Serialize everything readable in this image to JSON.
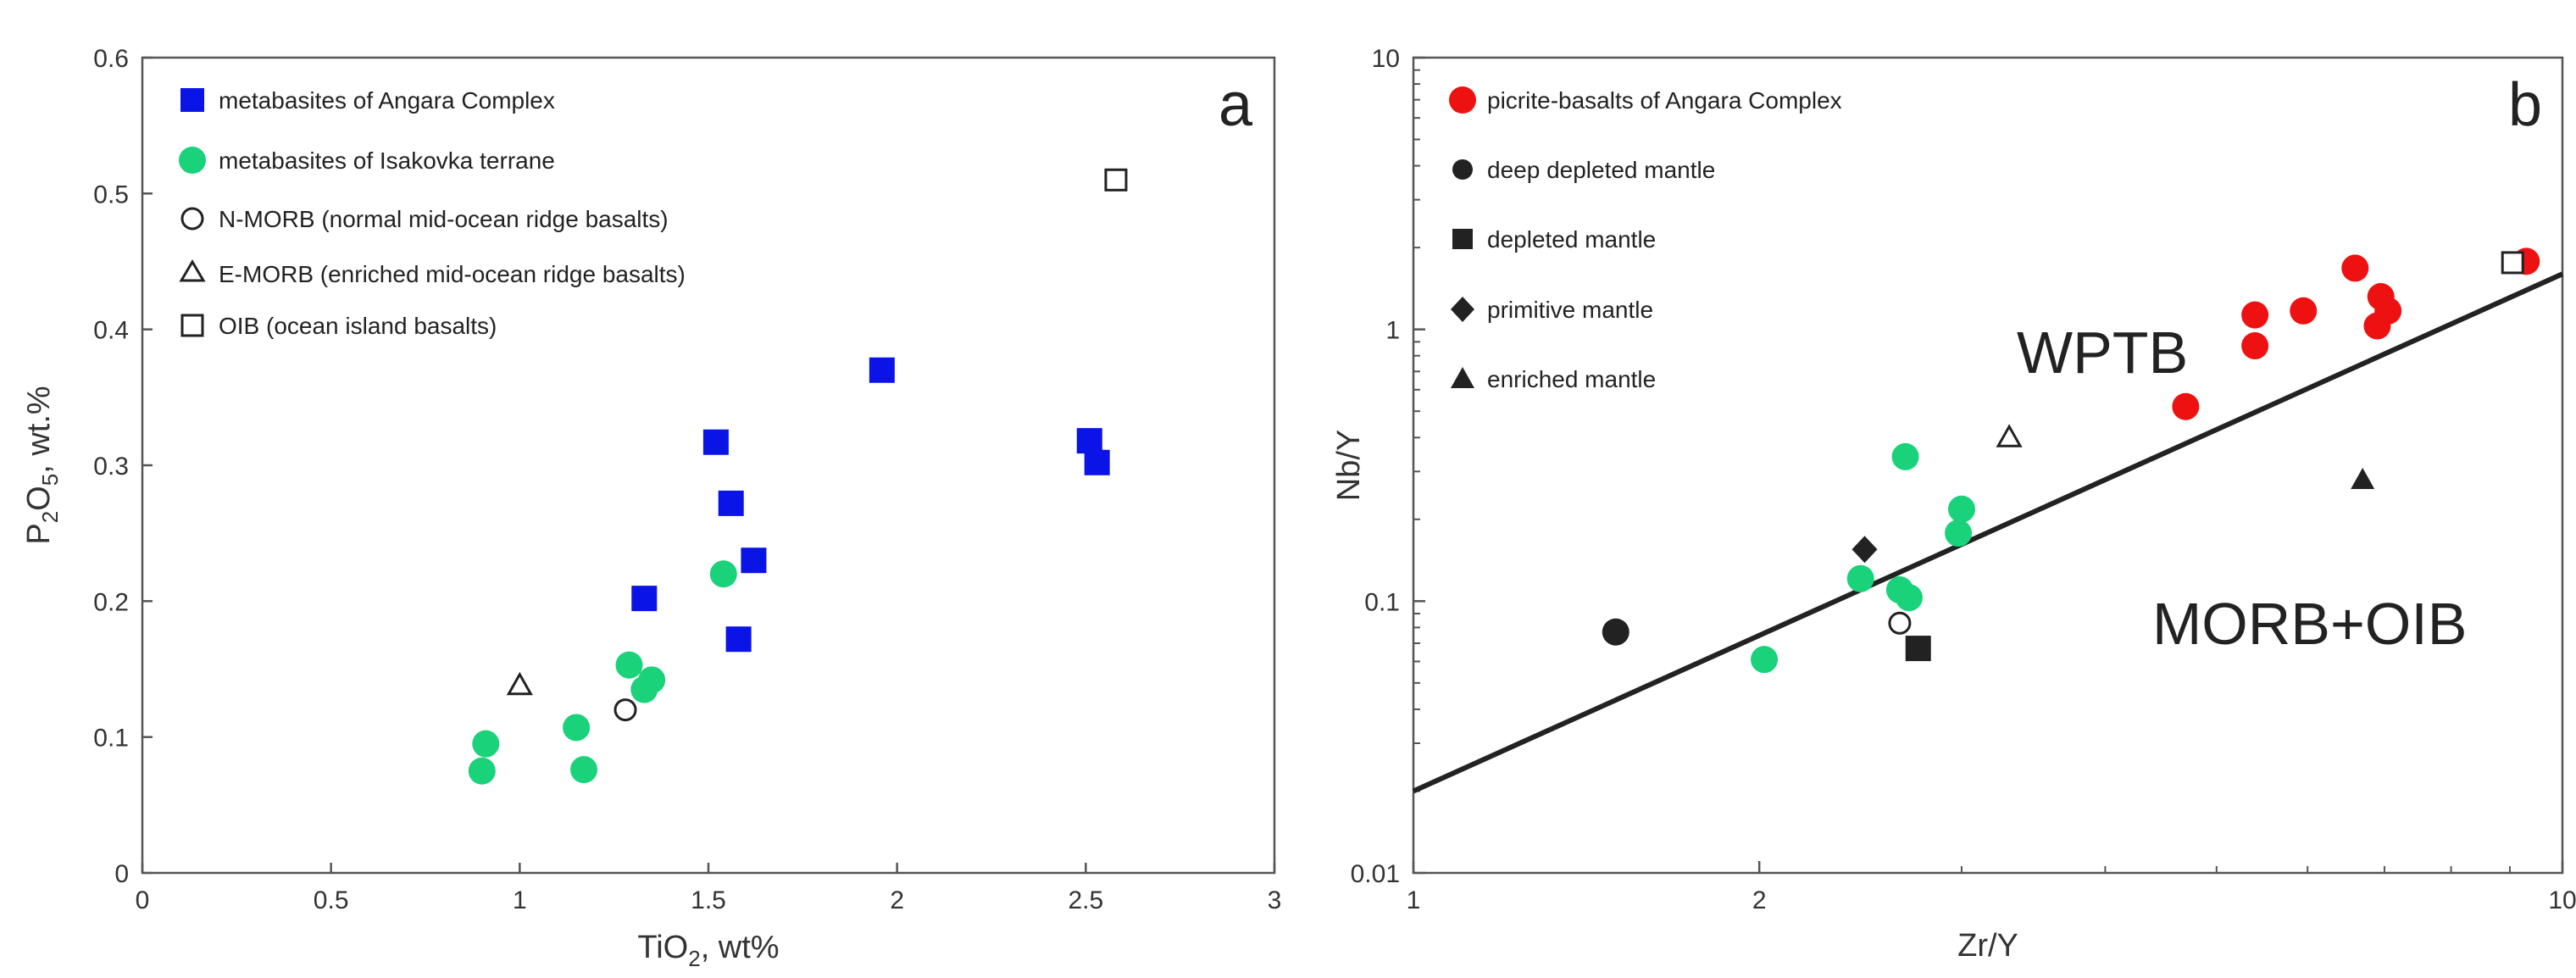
{
  "colors": {
    "angara_blue": "#0a14e6",
    "isakovka_green": "#19d27a",
    "picrite_red": "#ee1111",
    "black": "#222222",
    "axis": "#555555"
  },
  "chart_data": [
    {
      "type": "scatter",
      "panel_label": "a",
      "xlabel": {
        "main": "TiO",
        "sub": "2",
        "rest": ", wt%"
      },
      "ylabel": {
        "main": "P",
        "sub": "2",
        "mid": "O",
        "sub2": "5",
        "rest": ", wt.%"
      },
      "xlim": [
        0,
        3
      ],
      "ylim": [
        0,
        0.6
      ],
      "x_ticks": [
        0,
        0.5,
        1,
        1.5,
        2,
        2.5,
        3
      ],
      "x_tick_labels": [
        "0",
        "0.5",
        "1",
        "1.5",
        "2",
        "2.5",
        "3"
      ],
      "y_ticks": [
        0,
        0.1,
        0.2,
        0.3,
        0.4,
        0.5,
        0.6
      ],
      "y_tick_labels": [
        "0",
        "0.1",
        "0.2",
        "0.3",
        "0.4",
        "0.5",
        "0.6"
      ],
      "legend": [
        {
          "label": "metabasites of Angara Complex",
          "marker": "square-filled",
          "color": "#0a14e6"
        },
        {
          "label": "metabasites of Isakovka terrane",
          "marker": "circle-filled",
          "color": "#19d27a"
        },
        {
          "label": "N-MORB (normal mid-ocean ridge basalts)",
          "marker": "circle-open",
          "color": "#222222"
        },
        {
          "label": "E-MORB (enriched mid-ocean ridge basalts)",
          "marker": "triangle-open",
          "color": "#222222"
        },
        {
          "label": "OIB (ocean island basalts)",
          "marker": "square-open",
          "color": "#222222"
        }
      ],
      "series": [
        {
          "name": "metabasites of Angara Complex",
          "marker": "square-filled",
          "color": "#0a14e6",
          "points": [
            [
              1.96,
              0.37
            ],
            [
              1.52,
              0.317
            ],
            [
              1.56,
              0.272
            ],
            [
              1.62,
              0.23
            ],
            [
              1.33,
              0.202
            ],
            [
              1.58,
              0.172
            ],
            [
              2.51,
              0.318
            ],
            [
              2.53,
              0.302
            ]
          ]
        },
        {
          "name": "metabasites of Isakovka terrane",
          "marker": "circle-filled",
          "color": "#19d27a",
          "points": [
            [
              1.54,
              0.22
            ],
            [
              1.29,
              0.153
            ],
            [
              1.35,
              0.142
            ],
            [
              1.33,
              0.135
            ],
            [
              1.15,
              0.107
            ],
            [
              1.17,
              0.076
            ],
            [
              0.91,
              0.095
            ],
            [
              0.9,
              0.075
            ]
          ]
        },
        {
          "name": "N-MORB",
          "marker": "circle-open",
          "color": "#222222",
          "points": [
            [
              1.28,
              0.12
            ]
          ]
        },
        {
          "name": "E-MORB",
          "marker": "triangle-open",
          "color": "#222222",
          "points": [
            [
              1.0,
              0.138
            ]
          ]
        },
        {
          "name": "OIB",
          "marker": "square-open",
          "color": "#222222",
          "points": [
            [
              2.58,
              0.51
            ]
          ]
        }
      ]
    },
    {
      "type": "scatter",
      "panel_label": "b",
      "xscale": "log",
      "yscale": "log",
      "xlabel": "Zr/Y",
      "ylabel": "Nb/Y",
      "xlim": [
        1,
        10
      ],
      "ylim": [
        0.01,
        10
      ],
      "x_ticks": [
        1,
        2,
        10
      ],
      "x_tick_labels": [
        "1",
        "2",
        "10"
      ],
      "x_minor_ticks": [
        3,
        4,
        5,
        6,
        7,
        8,
        9
      ],
      "y_ticks": [
        0.01,
        0.1,
        1,
        10
      ],
      "y_tick_labels": [
        "0.01",
        "0.1",
        "1",
        "10"
      ],
      "y_minor_ticks": [
        0.02,
        0.03,
        0.04,
        0.05,
        0.06,
        0.07,
        0.08,
        0.09,
        0.2,
        0.3,
        0.4,
        0.5,
        0.6,
        0.7,
        0.8,
        0.9,
        2,
        3,
        4,
        5,
        6,
        7,
        8,
        9
      ],
      "regions": [
        "WPTB",
        "MORB+OIB"
      ],
      "region_positions": [
        "upper-middle",
        "lower-right"
      ],
      "divider_line": {
        "x": [
          1,
          10
        ],
        "y": [
          0.02,
          1.6
        ]
      },
      "legend": [
        {
          "label": "picrite-basalts of Angara Complex",
          "marker": "circle-filled",
          "color": "#ee1111"
        },
        {
          "label": "deep depleted mantle",
          "marker": "circle-filled",
          "color": "#222222"
        },
        {
          "label": "depleted mantle",
          "marker": "square-filled",
          "color": "#222222"
        },
        {
          "label": "primitive mantle",
          "marker": "diamond-filled",
          "color": "#222222"
        },
        {
          "label": "enriched mantle",
          "marker": "triangle-filled",
          "color": "#222222"
        }
      ],
      "series": [
        {
          "name": "picrite-basalts of Angara Complex",
          "marker": "circle-filled",
          "color": "#ee1111",
          "points": [
            [
              4.7,
              0.52
            ],
            [
              5.4,
              0.87
            ],
            [
              5.4,
              1.13
            ],
            [
              5.95,
              1.17
            ],
            [
              6.6,
              1.68
            ],
            [
              6.95,
              1.32
            ],
            [
              7.05,
              1.17
            ],
            [
              6.9,
              1.03
            ],
            [
              9.3,
              1.78
            ]
          ]
        },
        {
          "name": "metabasites of Isakovka terrane",
          "marker": "circle-filled",
          "color": "#19d27a",
          "points": [
            [
              2.02,
              0.061
            ],
            [
              2.45,
              0.121
            ],
            [
              2.65,
              0.11
            ],
            [
              2.7,
              0.103
            ],
            [
              2.68,
              0.34
            ],
            [
              3.0,
              0.218
            ],
            [
              2.98,
              0.178
            ]
          ]
        },
        {
          "name": "N-MORB",
          "marker": "circle-open",
          "color": "#222222",
          "points": [
            [
              2.65,
              0.083
            ]
          ]
        },
        {
          "name": "E-MORB",
          "marker": "triangle-open",
          "color": "#222222",
          "points": [
            [
              3.3,
              0.4
            ]
          ]
        },
        {
          "name": "OIB",
          "marker": "square-open",
          "color": "#222222",
          "points": [
            [
              9.05,
              1.76
            ]
          ]
        },
        {
          "name": "deep depleted mantle",
          "marker": "circle-filled",
          "color": "#222222",
          "points": [
            [
              1.5,
              0.077
            ]
          ]
        },
        {
          "name": "depleted mantle",
          "marker": "square-filled",
          "color": "#222222",
          "points": [
            [
              2.75,
              0.067
            ]
          ]
        },
        {
          "name": "primitive mantle",
          "marker": "diamond-filled",
          "color": "#222222",
          "points": [
            [
              2.47,
              0.155
            ]
          ]
        },
        {
          "name": "enriched mantle",
          "marker": "triangle-filled",
          "color": "#222222",
          "points": [
            [
              6.7,
              0.28
            ]
          ]
        }
      ]
    }
  ]
}
